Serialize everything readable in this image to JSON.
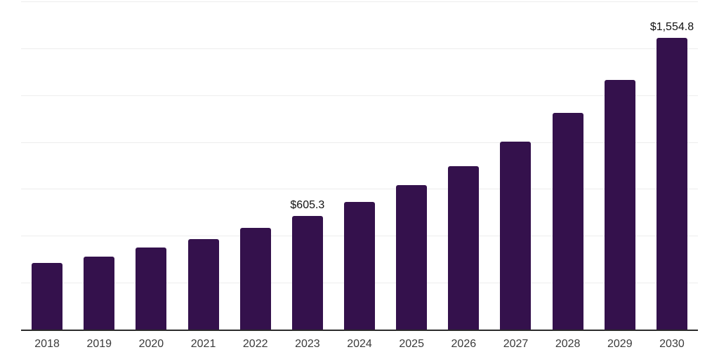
{
  "chart_data": {
    "type": "bar",
    "title": "",
    "xlabel": "",
    "ylabel": "",
    "categories": [
      "2018",
      "2019",
      "2020",
      "2021",
      "2022",
      "2023",
      "2024",
      "2025",
      "2026",
      "2027",
      "2028",
      "2029",
      "2030"
    ],
    "values": [
      356,
      390,
      436,
      483,
      543,
      605.3,
      680,
      769,
      872,
      1002,
      1155,
      1331,
      1554.8
    ],
    "data_labels": [
      "",
      "",
      "",
      "",
      "",
      "$605.3",
      "",
      "",
      "",
      "",
      "",
      "",
      "$1,554.8"
    ],
    "ylim": [
      0,
      1750
    ],
    "grid_step": 250,
    "grid": "horizontal-only",
    "y_tick_labels": "none",
    "legend": "none"
  },
  "colors": {
    "bar": "#34114c",
    "gridline": "#ededed",
    "axis_line": "#2b2b2b",
    "x_label_text": "#3b3b3b",
    "value_label_text": "#111111",
    "background": "#ffffff"
  }
}
